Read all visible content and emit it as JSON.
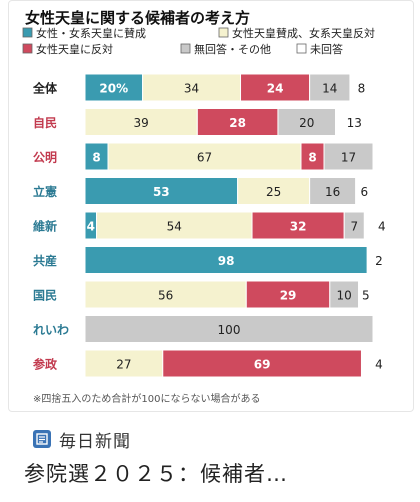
{
  "chart_data": {
    "type": "bar",
    "stacked": true,
    "orientation": "horizontal",
    "title": "女性天皇に関する候補者の考え方",
    "categories": [
      "全体",
      "自民",
      "公明",
      "立憲",
      "維新",
      "共産",
      "国民",
      "れいわ",
      "参政"
    ],
    "series": [
      {
        "name": "女性・女系天皇に賛成",
        "color": "#3a9bb0",
        "values": [
          20,
          0,
          8,
          53,
          4,
          98,
          0,
          0,
          0
        ]
      },
      {
        "name": "女性天皇賛成、女系天皇反対",
        "color": "#f5f2cf",
        "values": [
          34,
          39,
          67,
          25,
          54,
          0,
          56,
          0,
          27
        ]
      },
      {
        "name": "女性天皇に反対",
        "color": "#cf4a5e",
        "values": [
          24,
          28,
          8,
          0,
          32,
          0,
          29,
          0,
          69
        ]
      },
      {
        "name": "無回答・その他",
        "color": "#c9c9c9",
        "values": [
          14,
          20,
          17,
          16,
          7,
          0,
          10,
          100,
          0
        ]
      },
      {
        "name": "未回答",
        "color": "#ffffff",
        "values": [
          8,
          13,
          0,
          6,
          4,
          2,
          5,
          0,
          4
        ]
      }
    ],
    "data_labels": [
      [
        "20%",
        "34",
        "24",
        "14",
        "8"
      ],
      [
        "",
        "39",
        "28",
        "20",
        "13"
      ],
      [
        "8",
        "67",
        "8",
        "17",
        ""
      ],
      [
        "53",
        "25",
        "",
        "16",
        "6"
      ],
      [
        "4",
        "54",
        "32",
        "7",
        "4"
      ],
      [
        "98",
        "",
        "",
        "",
        "2"
      ],
      [
        "",
        "56",
        "29",
        "10",
        "5"
      ],
      [
        "",
        "",
        "",
        "100",
        ""
      ],
      [
        "",
        "27",
        "69",
        "",
        "4"
      ]
    ],
    "category_colors": [
      "#222222",
      "#c23a4e",
      "#c23a4e",
      "#2b7a93",
      "#2b7a93",
      "#2b7a93",
      "#2b7a93",
      "#2b7a93",
      "#c23a4e"
    ],
    "legend": [
      {
        "label": "女性・女系天皇に賛成",
        "color": "#3a9bb0"
      },
      {
        "label": "女性天皇賛成、女系天皇反対",
        "color": "#f5f2cf"
      },
      {
        "label": "女性天皇に反対",
        "color": "#cf4a5e"
      },
      {
        "label": "無回答・その他",
        "color": "#c9c9c9"
      },
      {
        "label": "未回答",
        "color": "#ffffff"
      }
    ],
    "legend_position": "top",
    "footnote": "※四捨五入のため合計が100にならない場合がある",
    "xlim": [
      0,
      100
    ],
    "grid": false
  },
  "source": {
    "name": "毎日新聞",
    "icon": "newspaper-icon"
  },
  "caption": "参院選２０２５：候補者…"
}
